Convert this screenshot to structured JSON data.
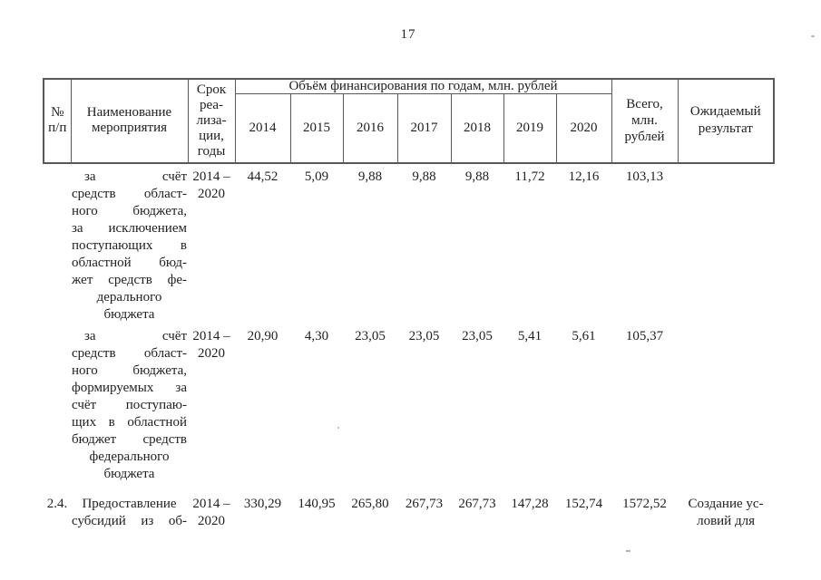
{
  "page": {
    "number": "17"
  },
  "table": {
    "header": {
      "num_label": "№\nп/п",
      "name_label": "Наименование\nмероприятия",
      "term_label": "Срок\nреа-\nлиза-\nции,\nгоды",
      "volume_label": "Объём финансирования по годам, млн. рублей",
      "years": [
        "2014",
        "2015",
        "2016",
        "2017",
        "2018",
        "2019",
        "2020"
      ],
      "total_label": "Всего,\nмлн.\nрублей",
      "expected_label": "Ожидаемый\nрезультат"
    },
    "rows": [
      {
        "num": "",
        "name_lines": [
          "за счёт",
          "средств област-",
          "ного бюджета,",
          "за исключением",
          "поступающих в",
          "областной бюд-",
          "жет средств фе-",
          "дерального",
          "бюджета"
        ],
        "name_first_indent": true,
        "term": "2014 –\n2020",
        "values": [
          "44,52",
          "5,09",
          "9,88",
          "9,88",
          "9,88",
          "11,72",
          "12,16"
        ],
        "total": "103,13",
        "result_lines": []
      },
      {
        "num": "",
        "name_lines": [
          "за счёт",
          "средств област-",
          "ного бюджета,",
          "формируемых за",
          "счёт поступаю-",
          "щих в областной",
          "бюджет средств",
          "федерального",
          "бюджета"
        ],
        "name_first_indent": true,
        "term": "2014 –\n2020",
        "values": [
          "20,90",
          "4,30",
          "23,05",
          "23,05",
          "23,05",
          "5,41",
          "5,61"
        ],
        "total": "105,37",
        "result_lines": []
      },
      {
        "num": "2.4.",
        "name_lines": [
          "Предоставление",
          "субсидий из об-"
        ],
        "name_first_indent": false,
        "term": "2014 –\n2020",
        "values": [
          "330,29",
          "140,95",
          "265,80",
          "267,73",
          "267,73",
          "147,28",
          "152,74"
        ],
        "total": "1572,52",
        "result_lines": [
          "Создание ус-",
          "ловий для"
        ]
      }
    ]
  }
}
